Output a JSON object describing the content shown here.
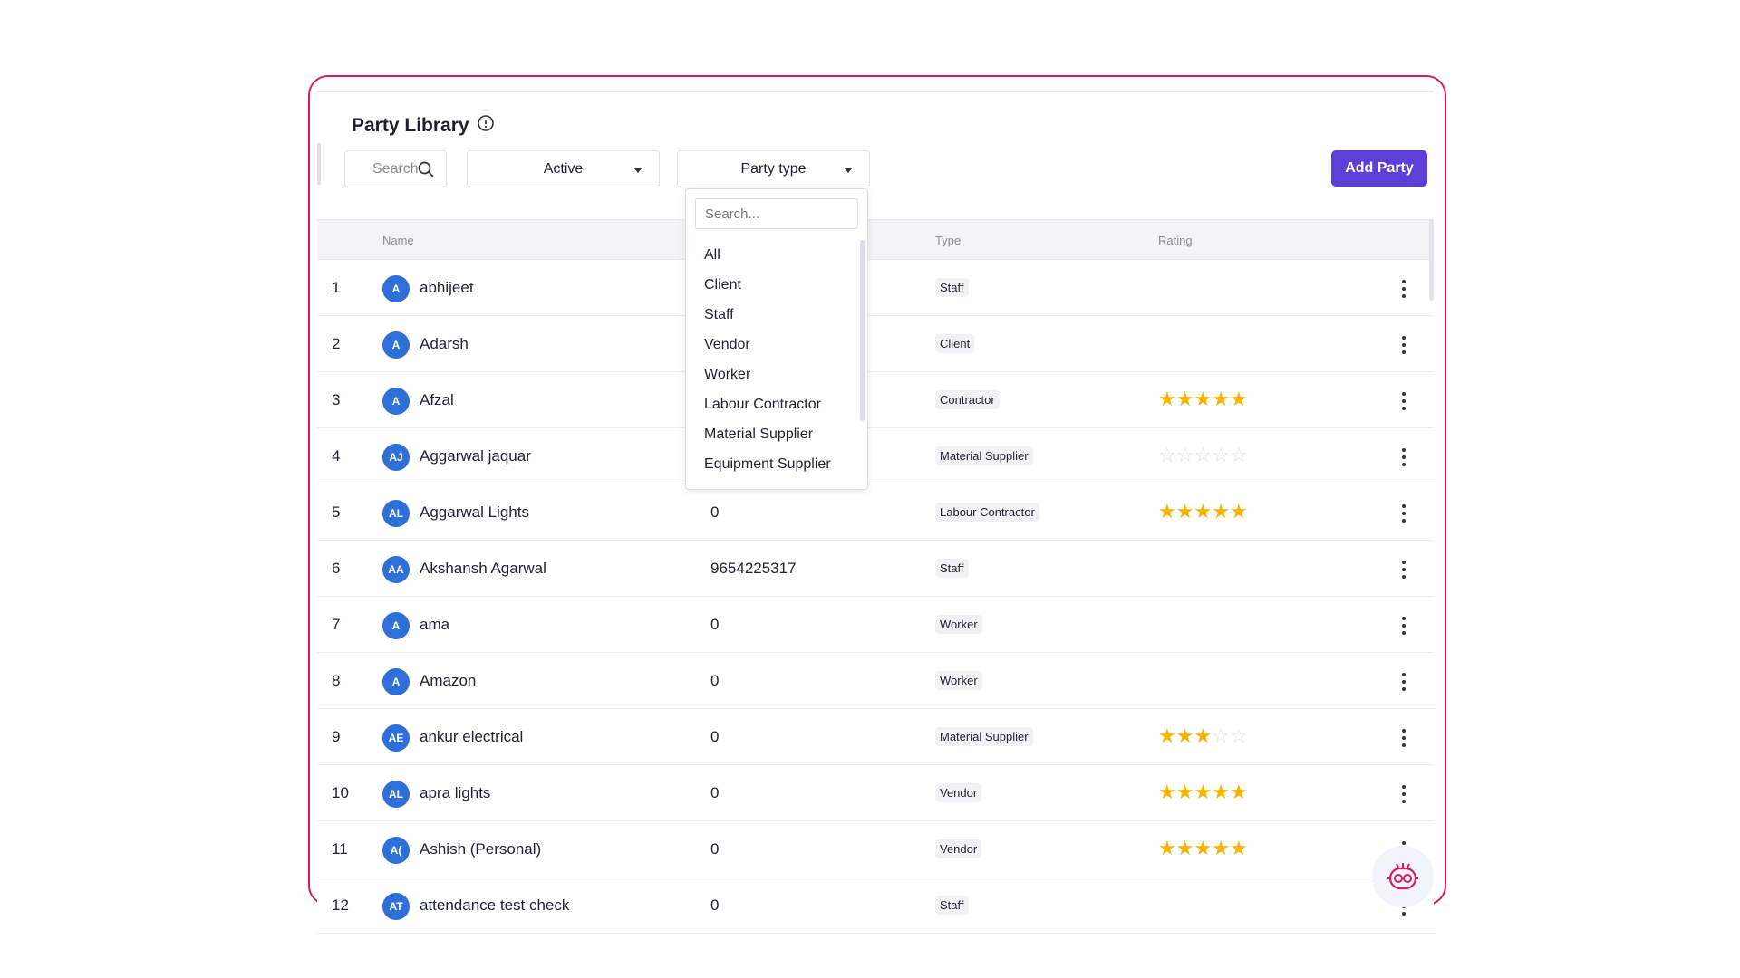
{
  "page": {
    "title": "Party Library"
  },
  "toolbar": {
    "search_placeholder": "Search",
    "status_value": "Active",
    "party_type_value": "Party type",
    "add_button_label": "Add Party"
  },
  "dropdown": {
    "search_placeholder": "Search...",
    "options": [
      "All",
      "Client",
      "Staff",
      "Vendor",
      "Worker",
      "Labour Contractor",
      "Material Supplier",
      "Equipment Supplier"
    ]
  },
  "table": {
    "columns": [
      "Name",
      "Type",
      "Rating"
    ],
    "rows": [
      {
        "num": "1",
        "initials": "A",
        "name": "abhijeet",
        "phone": "",
        "type": "Staff",
        "rating": 0
      },
      {
        "num": "2",
        "initials": "A",
        "name": "Adarsh",
        "phone": "",
        "type": "Client",
        "rating": 0
      },
      {
        "num": "3",
        "initials": "A",
        "name": "Afzal",
        "phone": "",
        "type": "Contractor",
        "rating": 5
      },
      {
        "num": "4",
        "initials": "AJ",
        "name": "Aggarwal jaquar",
        "phone": "",
        "type": "Material Supplier",
        "rating": 0,
        "rated_empty": true
      },
      {
        "num": "5",
        "initials": "AL",
        "name": "Aggarwal Lights",
        "phone": "0",
        "type": "Labour Contractor",
        "rating": 5
      },
      {
        "num": "6",
        "initials": "AA",
        "name": "Akshansh Agarwal",
        "phone": "9654225317",
        "type": "Staff",
        "rating": 0
      },
      {
        "num": "7",
        "initials": "A",
        "name": "ama",
        "phone": "0",
        "type": "Worker",
        "rating": 0
      },
      {
        "num": "8",
        "initials": "A",
        "name": "Amazon",
        "phone": "0",
        "type": "Worker",
        "rating": 0
      },
      {
        "num": "9",
        "initials": "AE",
        "name": "ankur electrical",
        "phone": "0",
        "type": "Material Supplier",
        "rating": 3
      },
      {
        "num": "10",
        "initials": "AL",
        "name": "apra lights",
        "phone": "0",
        "type": "Vendor",
        "rating": 5
      },
      {
        "num": "11",
        "initials": "A(",
        "name": "Ashish (Personal)",
        "phone": "0",
        "type": "Vendor",
        "rating": 5
      },
      {
        "num": "12",
        "initials": "AT",
        "name": "attendance test check",
        "phone": "0",
        "type": "Staff",
        "rating": 0
      }
    ]
  },
  "colors": {
    "frame_border": "#d81b60",
    "primary_button": "#5b3fd6",
    "avatar": "#2f6fd8",
    "star": "#f4b400"
  },
  "icons": [
    "info-icon",
    "search-icon",
    "chevron-down-icon",
    "more-vertical-icon",
    "star-icon",
    "bot-icon"
  ]
}
